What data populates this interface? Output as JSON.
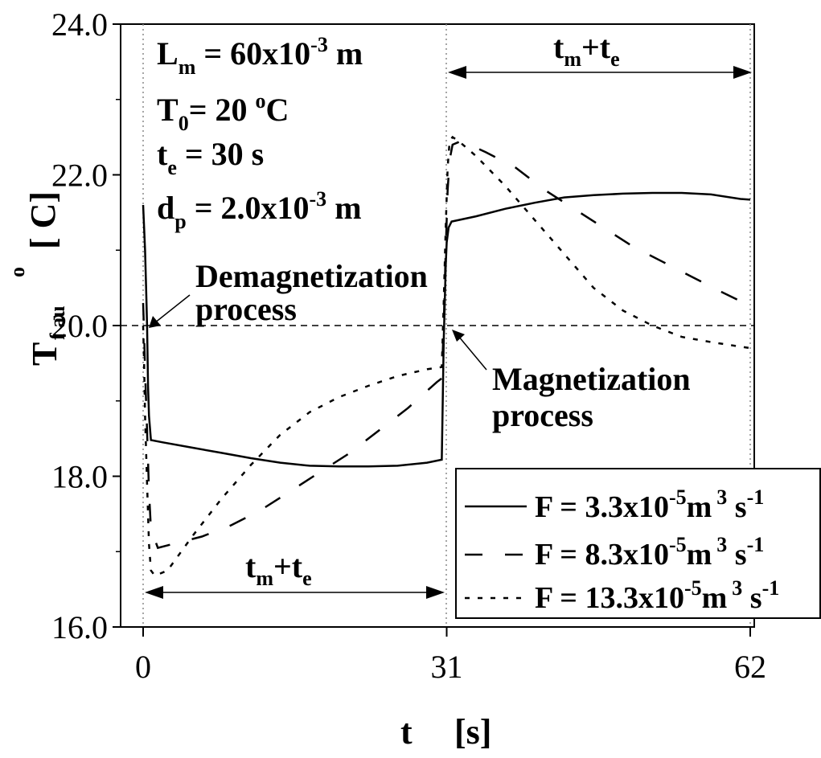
{
  "chart_data": {
    "type": "line",
    "xlim": [
      0,
      62
    ],
    "ylim": [
      16.0,
      24.0
    ],
    "x_ticks": [
      "0",
      "31",
      "62"
    ],
    "y_ticks": [
      "16.0",
      "18.0",
      "20.0",
      "22.0",
      "24.0"
    ],
    "xlabel": {
      "main": "t",
      "unit": "[s]"
    },
    "ylabel": {
      "main": "T",
      "sub": "f au",
      "unit": "[ C]",
      "sup": "o"
    },
    "reference_line_y": 20.0,
    "params": [
      {
        "pre": "L",
        "sub": "m",
        "mid": " = 60x10",
        "sup": "-3",
        "post": " m"
      },
      {
        "pre": "T",
        "sub": "0",
        "mid": "= 20 ",
        "sup": "o",
        "post": "C"
      },
      {
        "pre": "t",
        "sub": "e",
        "mid": " = 30  s",
        "sup": "",
        "post": ""
      },
      {
        "pre": "d",
        "sub": "p",
        "mid": " = 2.0x10",
        "sup": "-3",
        "post": " m"
      }
    ],
    "annotations": {
      "demag": [
        "Demagnetization",
        "process"
      ],
      "mag": [
        "Magnetization",
        "process"
      ],
      "interval": {
        "t": "t",
        "m": "m",
        "plus": "+",
        "t2": "t",
        "e": "e"
      }
    },
    "legend_position": "bottom-right",
    "series": [
      {
        "name": "F = 3.3x10-5 m3 s-1",
        "label": {
          "pre": "F = 3.3x10",
          "sup1": "-5",
          "mid": "m",
          "sup2": "3",
          "post": " s",
          "sup3": "-1"
        },
        "dash": "solid",
        "x": [
          0,
          0.1,
          0.2,
          0.3,
          0.4,
          0.5,
          0.6,
          0.8,
          2,
          5,
          8,
          11,
          14,
          17,
          20,
          23,
          26,
          29,
          30.5,
          30.6,
          30.7,
          30.8,
          30.9,
          31,
          31.2,
          31.5,
          34,
          37,
          40,
          43,
          46,
          49,
          52,
          55,
          58,
          61,
          62
        ],
        "y": [
          21.6,
          21.3,
          21.0,
          20.5,
          20.0,
          19.2,
          18.8,
          18.48,
          18.45,
          18.38,
          18.31,
          18.24,
          18.18,
          18.14,
          18.13,
          18.13,
          18.14,
          18.18,
          18.22,
          19.0,
          19.8,
          20.3,
          20.8,
          21.1,
          21.3,
          21.38,
          21.45,
          21.55,
          21.63,
          21.7,
          21.73,
          21.75,
          21.76,
          21.76,
          21.74,
          21.68,
          21.67
        ]
      },
      {
        "name": "F = 8.3x10-5 m3 s-1",
        "label": {
          "pre": "F = 8.3x10",
          "sup1": "-5",
          "mid": "m",
          "sup2": "3",
          "post": " s",
          "sup3": "-1"
        },
        "dash": "dash",
        "x": [
          0,
          0.1,
          0.2,
          0.4,
          0.6,
          0.8,
          1.5,
          3,
          6,
          9,
          12,
          15,
          18,
          21,
          24,
          27,
          30,
          30.5,
          30.7,
          30.9,
          31.1,
          31.3,
          31.6,
          32.5,
          35,
          38,
          41,
          44,
          47,
          50,
          53,
          56,
          59,
          62
        ],
        "y": [
          20.3,
          19.9,
          19.4,
          18.6,
          17.8,
          17.3,
          17.05,
          17.1,
          17.2,
          17.35,
          17.55,
          17.8,
          18.05,
          18.3,
          18.6,
          18.9,
          19.25,
          19.3,
          20.0,
          21.0,
          21.8,
          22.2,
          22.4,
          22.45,
          22.3,
          22.1,
          21.8,
          21.55,
          21.3,
          21.05,
          20.85,
          20.65,
          20.45,
          20.26
        ]
      },
      {
        "name": "F = 13.3x10-5 m3 s-1",
        "label": {
          "pre": "F = 13.3x10",
          "sup1": "-5",
          "mid": "m",
          "sup2": "3",
          "post": " s",
          "sup3": "-1"
        },
        "dash": "dot",
        "x": [
          0,
          0.1,
          0.2,
          0.4,
          0.6,
          0.8,
          1.2,
          2.5,
          5,
          8,
          11,
          14,
          17,
          20,
          23,
          26,
          29,
          30.5,
          30.7,
          30.9,
          31.1,
          31.3,
          31.6,
          32.2,
          34,
          37,
          40,
          43,
          46,
          49,
          52,
          55,
          58,
          62
        ],
        "y": [
          20.0,
          19.5,
          18.8,
          17.9,
          17.1,
          16.75,
          16.68,
          16.75,
          17.2,
          17.7,
          18.15,
          18.55,
          18.85,
          19.05,
          19.2,
          19.33,
          19.42,
          19.45,
          20.3,
          21.3,
          22.1,
          22.45,
          22.5,
          22.45,
          22.25,
          21.85,
          21.4,
          20.95,
          20.5,
          20.2,
          20.0,
          19.85,
          19.78,
          19.7
        ]
      }
    ]
  }
}
